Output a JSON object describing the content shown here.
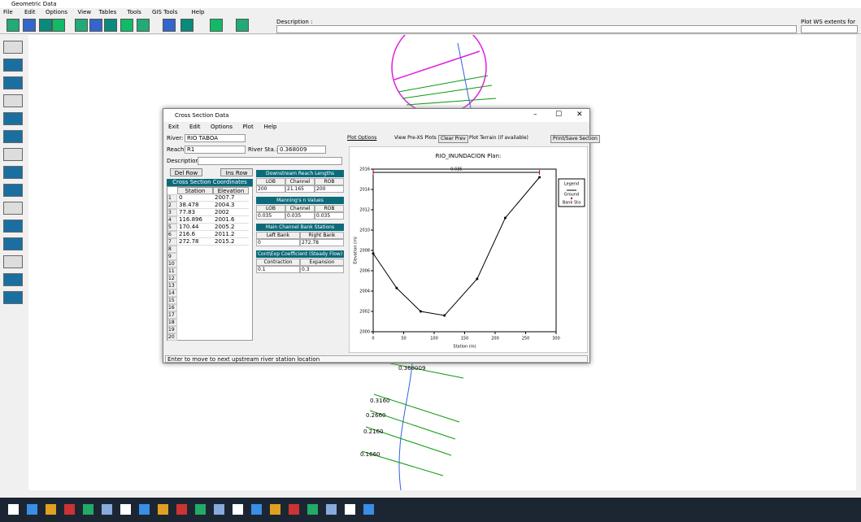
{
  "app": {
    "title": "Geometric Data",
    "menu": [
      "File",
      "Edit",
      "Options",
      "View",
      "Tables",
      "Tools",
      "GIS Tools",
      "Help"
    ],
    "description_label": "Description :",
    "profile_label": "Plot WS extents for Profile:",
    "xs_labels": [
      "0.368009",
      "0.3160",
      "0.2660",
      "0.2160",
      "0.1660"
    ]
  },
  "dialog": {
    "title": "Cross Section Data",
    "menu": [
      "Exit",
      "Edit",
      "Options",
      "Plot",
      "Help"
    ],
    "river_label": "River:",
    "river": "RIO TABOA",
    "reach_label": "Reach:",
    "reach": "R1",
    "sta_label": "River Sta.:",
    "sta": "0.368009",
    "description_label": "Description",
    "del_row": "Del Row",
    "ins_row": "Ins Row",
    "coords_header": "Cross Section Coordinates",
    "col_headers": [
      "Station",
      "Elevation"
    ],
    "row_numbers": [
      "1",
      "2",
      "3",
      "4",
      "5",
      "6",
      "7",
      "8",
      "9",
      "10",
      "11",
      "12",
      "13",
      "14",
      "15",
      "16",
      "17",
      "18",
      "19",
      "20"
    ],
    "plot_options": "Plot Options",
    "view_pre": "View Pre-XS Plots",
    "clear_prev": "Clear Prev",
    "plot_terrain": "Plot Terrain (if available)",
    "print_save": "Print/Save Section",
    "reach_lengths": {
      "header": "Downstream Reach Lengths",
      "cols": [
        "LOB",
        "Channel",
        "ROB"
      ],
      "values": [
        "200",
        "21.165",
        "200"
      ]
    },
    "mannings": {
      "header": "Manning's n Values",
      "cols": [
        "LOB",
        "Channel",
        "ROB"
      ],
      "values": [
        "0.035",
        "0.035",
        "0.035"
      ]
    },
    "bank_header": "Main Channel Bank Stations",
    "bank_cols": [
      "Left Bank",
      "Right Bank"
    ],
    "coef": {
      "header": "Cont\\Exp Coefficient (Steady Flow)",
      "cols": [
        "Contraction",
        "Expansion"
      ],
      "values": [
        "0.1",
        "0.3"
      ]
    },
    "status": "Enter to move to next upstream river station location"
  },
  "chart_data": {
    "type": "line",
    "title": "RIO_INUNDACION    Plan:",
    "x_label": "Station (m)",
    "y_label": "Elevation (m)",
    "x": [
      0,
      38.478,
      77.83,
      116.896,
      170.44,
      216.6,
      272.78
    ],
    "series": [
      {
        "name": "Ground",
        "color": "#000000",
        "values": [
          2007.7,
          2004.3,
          2002.0,
          2001.6,
          2005.2,
          2011.2,
          2015.2
        ]
      }
    ],
    "bank_stations": [
      0,
      272.78
    ],
    "bank_name": "Bank Sta",
    "bank_color": "#d00000",
    "legend_title": "Legend",
    "xlim": [
      0,
      300
    ],
    "xticks": [
      0,
      50,
      100,
      150,
      200,
      250,
      300
    ],
    "ylim": [
      2000,
      2016
    ],
    "yticks": [
      2000,
      2002,
      2004,
      2006,
      2008,
      2010,
      2012,
      2014,
      2016
    ]
  }
}
